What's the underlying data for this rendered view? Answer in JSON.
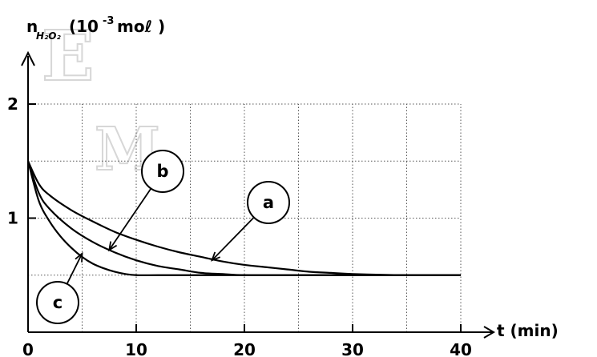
{
  "chart_data": {
    "type": "line",
    "ylabel_main": "n",
    "ylabel_sub": "H₂O₂",
    "ylabel_unit": "(10",
    "ylabel_exp": "-3",
    "ylabel_unit_end": " moℓ )",
    "xlabel": "t (min)",
    "xlim": [
      0,
      40
    ],
    "ylim": [
      0,
      2
    ],
    "xticks": [
      0,
      10,
      20,
      30,
      40
    ],
    "xtick_labels": [
      "0",
      "10",
      "20",
      "30",
      "40"
    ],
    "yticks": [
      1,
      2
    ],
    "ytick_labels": [
      "1",
      "2"
    ],
    "grid": true,
    "grid_x_step": 5,
    "grid_y_step": 0.5,
    "watermark": [
      "E",
      "M"
    ],
    "series": [
      {
        "label": "a",
        "x": [
          0,
          1,
          2,
          4,
          6,
          8,
          10,
          12,
          14,
          16,
          18,
          20,
          22,
          24,
          26,
          28,
          30,
          35,
          40
        ],
        "y": [
          1.5,
          1.3,
          1.2,
          1.07,
          0.97,
          0.88,
          0.81,
          0.75,
          0.7,
          0.66,
          0.62,
          0.59,
          0.57,
          0.55,
          0.53,
          0.52,
          0.51,
          0.5,
          0.5
        ]
      },
      {
        "label": "b",
        "x": [
          0,
          1,
          2,
          4,
          6,
          8,
          10,
          12,
          14,
          16,
          18,
          20,
          25,
          30,
          35,
          40
        ],
        "y": [
          1.5,
          1.22,
          1.08,
          0.91,
          0.79,
          0.7,
          0.63,
          0.58,
          0.55,
          0.52,
          0.51,
          0.5,
          0.5,
          0.5,
          0.5,
          0.5
        ]
      },
      {
        "label": "c",
        "x": [
          0,
          1,
          2,
          3,
          4,
          5,
          6,
          7,
          8,
          9,
          10,
          12,
          15,
          20,
          25,
          30,
          35,
          40
        ],
        "y": [
          1.5,
          1.15,
          0.97,
          0.84,
          0.74,
          0.66,
          0.6,
          0.56,
          0.53,
          0.51,
          0.5,
          0.5,
          0.5,
          0.5,
          0.5,
          0.5,
          0.5,
          0.5
        ]
      }
    ],
    "callouts": [
      {
        "label": "a",
        "points_to": [
          17,
          0.63
        ]
      },
      {
        "label": "b",
        "points_to": [
          7.5,
          0.72
        ]
      },
      {
        "label": "c",
        "points_to": [
          5,
          0.69
        ]
      }
    ]
  }
}
